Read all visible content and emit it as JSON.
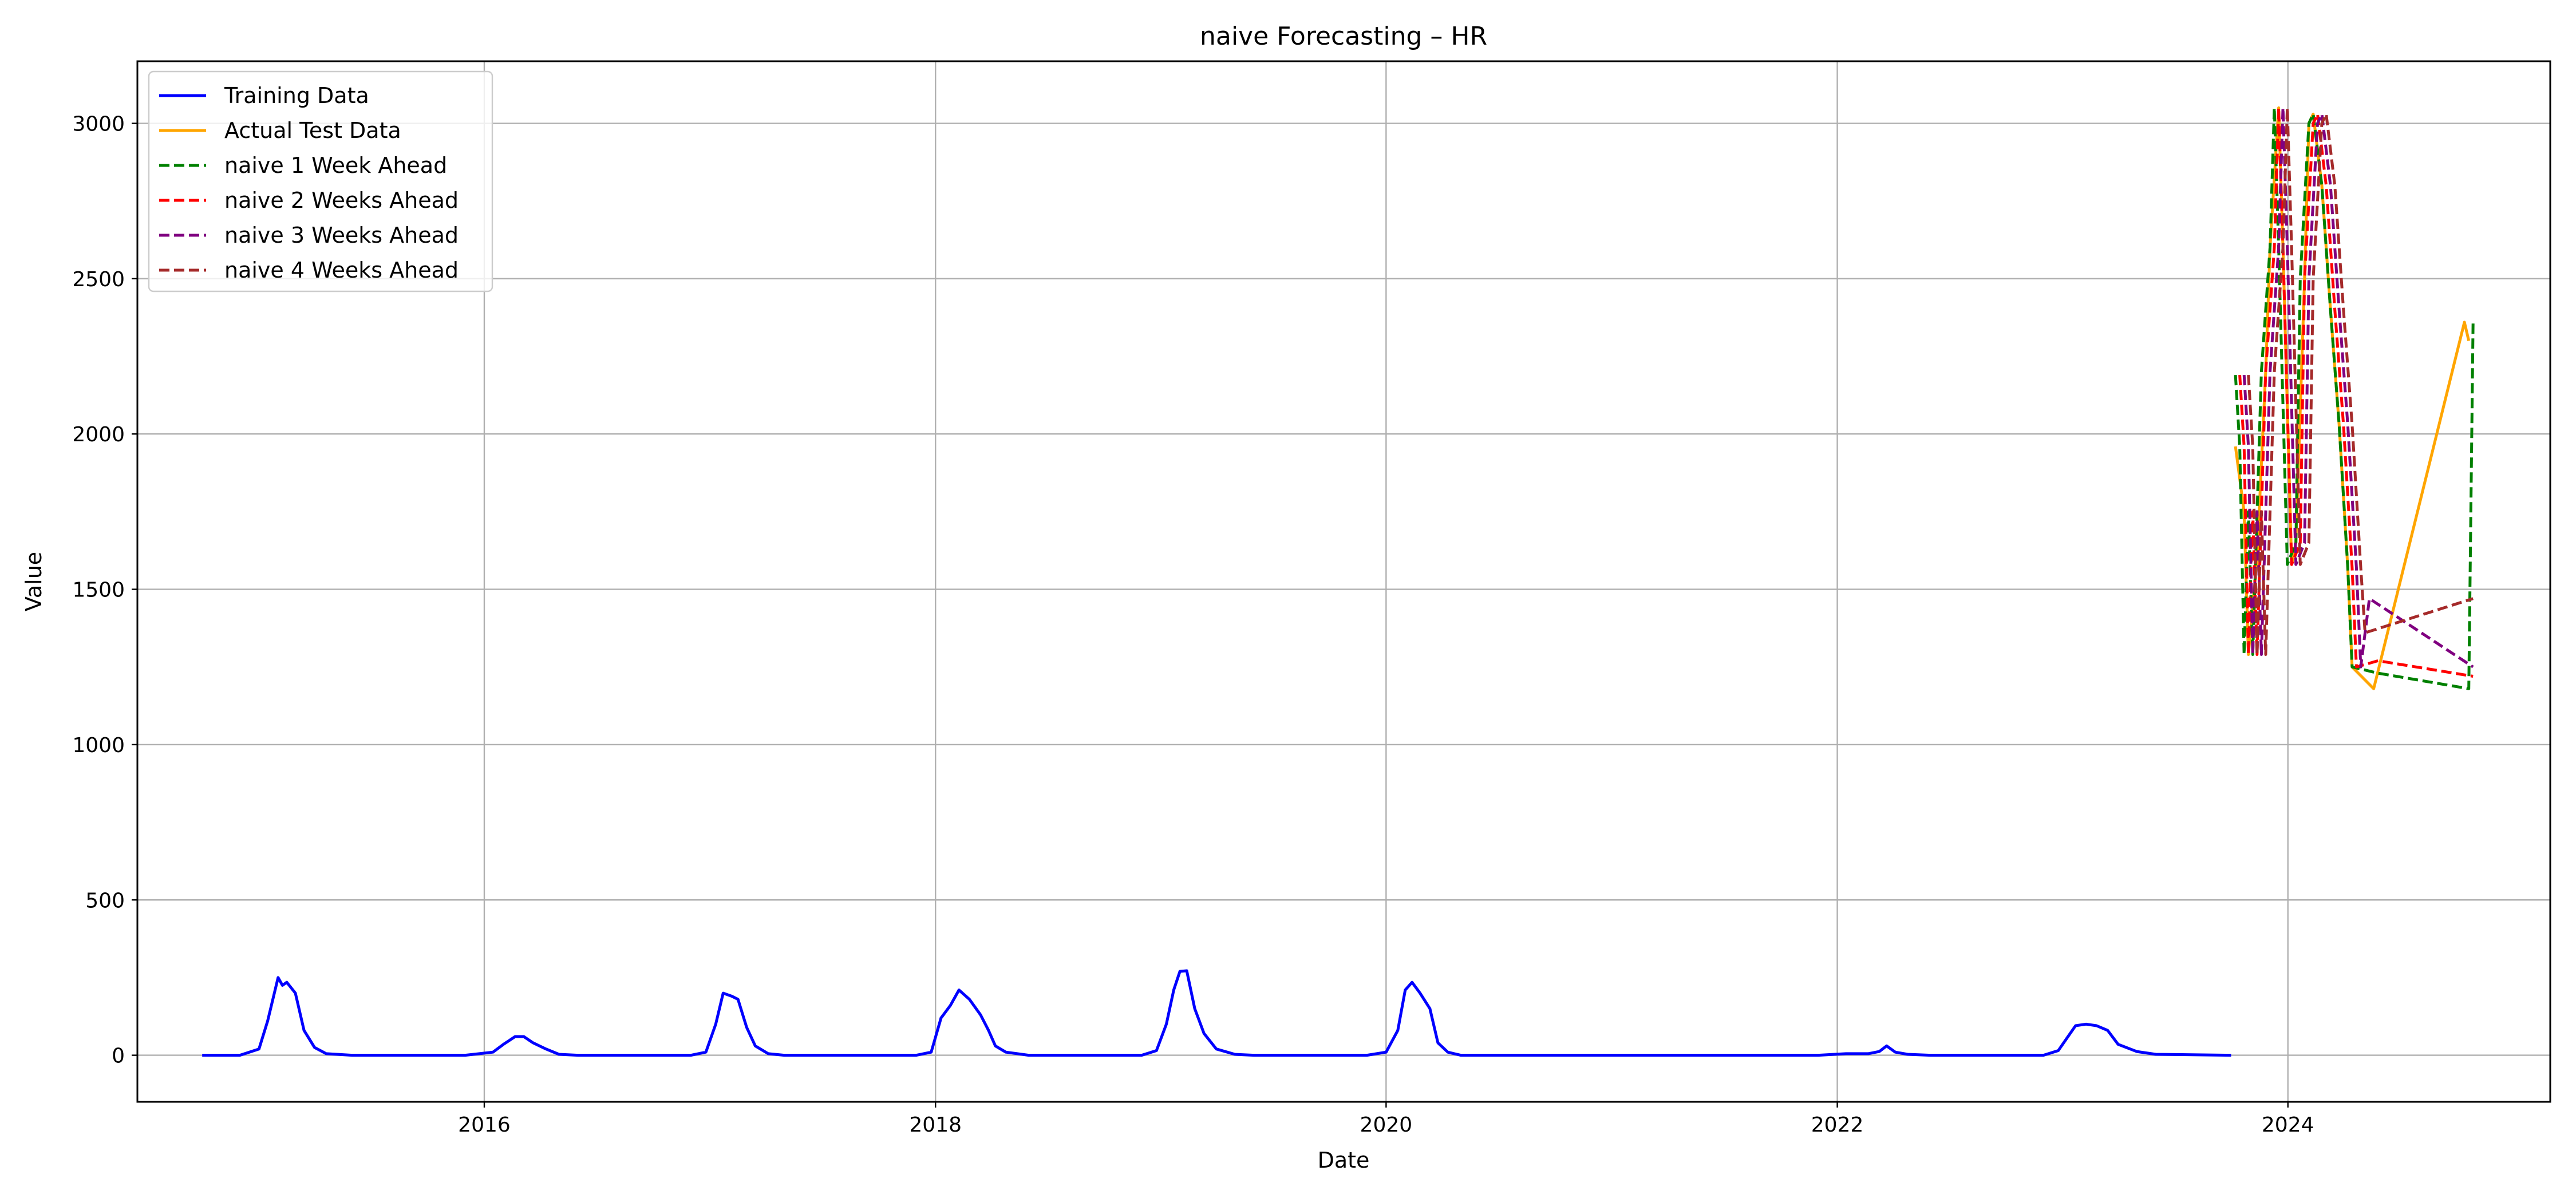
{
  "chart_data": {
    "type": "line",
    "title": "naive Forecasting – HR",
    "xlabel": "Date",
    "ylabel": "Value",
    "xlim": [
      "2014-06-18",
      "2025-03-01"
    ],
    "ylim": [
      -150,
      3200
    ],
    "x_ticks": [
      "2016-01-01",
      "2018-01-01",
      "2020-01-01",
      "2022-01-01",
      "2024-01-01"
    ],
    "x_tick_labels": [
      "2016",
      "2018",
      "2020",
      "2022",
      "2024"
    ],
    "y_ticks": [
      0,
      500,
      1000,
      1500,
      2000,
      2500,
      3000
    ],
    "y_tick_labels": [
      "0",
      "500",
      "1000",
      "1500",
      "2000",
      "2500",
      "3000"
    ],
    "grid": true,
    "legend_position": "top-left",
    "series": [
      {
        "name": "Training Data",
        "color": "#0000ff",
        "dash": "solid",
        "points": [
          [
            "2014-10-01",
            0
          ],
          [
            "2014-12-01",
            0
          ],
          [
            "2015-01-01",
            20
          ],
          [
            "2015-01-15",
            110
          ],
          [
            "2015-02-01",
            250
          ],
          [
            "2015-02-08",
            225
          ],
          [
            "2015-02-15",
            235
          ],
          [
            "2015-03-01",
            200
          ],
          [
            "2015-03-15",
            80
          ],
          [
            "2015-04-01",
            25
          ],
          [
            "2015-04-20",
            5
          ],
          [
            "2015-06-01",
            0
          ],
          [
            "2015-12-01",
            0
          ],
          [
            "2016-01-15",
            10
          ],
          [
            "2016-02-01",
            35
          ],
          [
            "2016-02-20",
            60
          ],
          [
            "2016-03-05",
            60
          ],
          [
            "2016-03-20",
            40
          ],
          [
            "2016-04-10",
            20
          ],
          [
            "2016-05-01",
            3
          ],
          [
            "2016-06-01",
            0
          ],
          [
            "2016-12-01",
            0
          ],
          [
            "2016-12-25",
            10
          ],
          [
            "2017-01-10",
            100
          ],
          [
            "2017-01-22",
            200
          ],
          [
            "2017-02-05",
            190
          ],
          [
            "2017-02-15",
            180
          ],
          [
            "2017-03-01",
            90
          ],
          [
            "2017-03-15",
            30
          ],
          [
            "2017-04-05",
            5
          ],
          [
            "2017-05-01",
            0
          ],
          [
            "2017-12-01",
            0
          ],
          [
            "2017-12-25",
            10
          ],
          [
            "2018-01-10",
            120
          ],
          [
            "2018-01-25",
            160
          ],
          [
            "2018-02-08",
            210
          ],
          [
            "2018-02-25",
            180
          ],
          [
            "2018-03-15",
            130
          ],
          [
            "2018-03-28",
            80
          ],
          [
            "2018-04-08",
            30
          ],
          [
            "2018-04-25",
            10
          ],
          [
            "2018-06-01",
            0
          ],
          [
            "2018-12-01",
            0
          ],
          [
            "2018-12-25",
            15
          ],
          [
            "2019-01-10",
            100
          ],
          [
            "2019-01-22",
            210
          ],
          [
            "2019-02-01",
            270
          ],
          [
            "2019-02-12",
            272
          ],
          [
            "2019-02-25",
            150
          ],
          [
            "2019-03-12",
            70
          ],
          [
            "2019-04-01",
            20
          ],
          [
            "2019-05-01",
            3
          ],
          [
            "2019-06-01",
            0
          ],
          [
            "2019-12-01",
            0
          ],
          [
            "2020-01-01",
            10
          ],
          [
            "2020-01-20",
            80
          ],
          [
            "2020-02-01",
            210
          ],
          [
            "2020-02-12",
            235
          ],
          [
            "2020-02-25",
            200
          ],
          [
            "2020-03-12",
            150
          ],
          [
            "2020-03-25",
            40
          ],
          [
            "2020-04-10",
            10
          ],
          [
            "2020-05-01",
            0
          ],
          [
            "2021-12-01",
            0
          ],
          [
            "2022-01-15",
            5
          ],
          [
            "2022-02-20",
            5
          ],
          [
            "2022-03-10",
            12
          ],
          [
            "2022-03-22",
            30
          ],
          [
            "2022-04-05",
            10
          ],
          [
            "2022-04-25",
            3
          ],
          [
            "2022-06-01",
            0
          ],
          [
            "2022-12-01",
            0
          ],
          [
            "2022-12-25",
            15
          ],
          [
            "2023-01-08",
            55
          ],
          [
            "2023-01-22",
            95
          ],
          [
            "2023-02-08",
            100
          ],
          [
            "2023-02-25",
            95
          ],
          [
            "2023-03-15",
            80
          ],
          [
            "2023-04-01",
            35
          ],
          [
            "2023-05-01",
            12
          ],
          [
            "2023-06-01",
            3
          ],
          [
            "2023-10-01",
            0
          ]
        ]
      },
      {
        "name": "Actual Test Data",
        "color": "#ffa500",
        "dash": "solid",
        "points": [
          [
            "2023-10-08",
            1960
          ],
          [
            "2023-10-22",
            1750
          ],
          [
            "2023-10-29",
            1290
          ],
          [
            "2023-11-12",
            1600
          ],
          [
            "2023-11-26",
            2200
          ],
          [
            "2023-12-03",
            2600
          ],
          [
            "2023-12-17",
            3050
          ],
          [
            "2023-12-24",
            2600
          ],
          [
            "2024-01-07",
            1580
          ],
          [
            "2024-01-14",
            1650
          ],
          [
            "2024-01-28",
            2500
          ],
          [
            "2024-02-04",
            3000
          ],
          [
            "2024-02-11",
            3030
          ],
          [
            "2024-02-25",
            2800
          ],
          [
            "2024-03-10",
            2400
          ],
          [
            "2024-03-24",
            2030
          ],
          [
            "2024-04-07",
            1570
          ],
          [
            "2024-04-14",
            1250
          ],
          [
            "2024-05-19",
            1180
          ],
          [
            "2024-10-13",
            2360
          ],
          [
            "2024-10-20",
            2300
          ]
        ]
      },
      {
        "name": "naive 1 Week Ahead",
        "color": "#008000",
        "dash": "dashed",
        "points": [
          [
            "2023-10-08",
            2190
          ],
          [
            "2023-10-15",
            1960
          ],
          [
            "2023-10-22",
            1290
          ],
          [
            "2023-10-29",
            1750
          ],
          [
            "2023-11-05",
            1290
          ],
          [
            "2023-11-19",
            2200
          ],
          [
            "2023-12-03",
            2600
          ],
          [
            "2023-12-10",
            3050
          ],
          [
            "2023-12-17",
            2600
          ],
          [
            "2023-12-31",
            1580
          ],
          [
            "2024-01-14",
            1650
          ],
          [
            "2024-01-21",
            2500
          ],
          [
            "2024-02-04",
            3000
          ],
          [
            "2024-02-11",
            3030
          ],
          [
            "2024-02-25",
            2800
          ],
          [
            "2024-03-10",
            2400
          ],
          [
            "2024-03-24",
            2030
          ],
          [
            "2024-04-07",
            1570
          ],
          [
            "2024-04-14",
            1250
          ],
          [
            "2024-05-26",
            1230
          ],
          [
            "2024-10-20",
            1180
          ],
          [
            "2024-10-27",
            2360
          ]
        ]
      },
      {
        "name": "naive 2 Weeks Ahead",
        "color": "#ff0000",
        "dash": "dashed",
        "points": [
          [
            "2023-10-15",
            2190
          ],
          [
            "2023-10-22",
            1960
          ],
          [
            "2023-10-29",
            1290
          ],
          [
            "2023-11-05",
            1750
          ],
          [
            "2023-11-12",
            1290
          ],
          [
            "2023-11-26",
            2200
          ],
          [
            "2023-12-10",
            2600
          ],
          [
            "2023-12-17",
            3050
          ],
          [
            "2023-12-24",
            2600
          ],
          [
            "2024-01-07",
            1580
          ],
          [
            "2024-01-21",
            1650
          ],
          [
            "2024-01-28",
            2500
          ],
          [
            "2024-02-11",
            3000
          ],
          [
            "2024-02-18",
            3030
          ],
          [
            "2024-03-03",
            2800
          ],
          [
            "2024-03-17",
            2400
          ],
          [
            "2024-03-31",
            2030
          ],
          [
            "2024-04-14",
            1570
          ],
          [
            "2024-04-21",
            1250
          ],
          [
            "2024-05-26",
            1270
          ],
          [
            "2024-10-27",
            1220
          ]
        ]
      },
      {
        "name": "naive 3 Weeks Ahead",
        "color": "#800080",
        "dash": "dashed",
        "points": [
          [
            "2023-10-22",
            2190
          ],
          [
            "2023-10-29",
            1960
          ],
          [
            "2023-11-05",
            1290
          ],
          [
            "2023-11-12",
            1750
          ],
          [
            "2023-11-19",
            1290
          ],
          [
            "2023-12-03",
            2200
          ],
          [
            "2023-12-17",
            2600
          ],
          [
            "2023-12-24",
            3050
          ],
          [
            "2023-12-31",
            2600
          ],
          [
            "2024-01-14",
            1580
          ],
          [
            "2024-01-28",
            1650
          ],
          [
            "2024-02-04",
            2500
          ],
          [
            "2024-02-18",
            3000
          ],
          [
            "2024-02-25",
            3030
          ],
          [
            "2024-03-10",
            2800
          ],
          [
            "2024-03-24",
            2400
          ],
          [
            "2024-04-07",
            2030
          ],
          [
            "2024-04-21",
            1570
          ],
          [
            "2024-04-28",
            1250
          ],
          [
            "2024-05-12",
            1470
          ],
          [
            "2024-10-27",
            1250
          ]
        ]
      },
      {
        "name": "naive 4 Weeks Ahead",
        "color": "#a52a2a",
        "dash": "dashed",
        "points": [
          [
            "2023-10-29",
            2190
          ],
          [
            "2023-11-05",
            1960
          ],
          [
            "2023-11-12",
            1290
          ],
          [
            "2023-11-19",
            1750
          ],
          [
            "2023-11-26",
            1290
          ],
          [
            "2023-12-10",
            2200
          ],
          [
            "2023-12-24",
            2600
          ],
          [
            "2023-12-31",
            3050
          ],
          [
            "2024-01-07",
            2600
          ],
          [
            "2024-01-21",
            1580
          ],
          [
            "2024-02-04",
            1650
          ],
          [
            "2024-02-11",
            2500
          ],
          [
            "2024-02-25",
            3000
          ],
          [
            "2024-03-03",
            3030
          ],
          [
            "2024-03-17",
            2800
          ],
          [
            "2024-03-31",
            2400
          ],
          [
            "2024-04-14",
            2030
          ],
          [
            "2024-04-28",
            1570
          ],
          [
            "2024-05-05",
            1360
          ],
          [
            "2024-10-27",
            1470
          ]
        ]
      }
    ]
  }
}
